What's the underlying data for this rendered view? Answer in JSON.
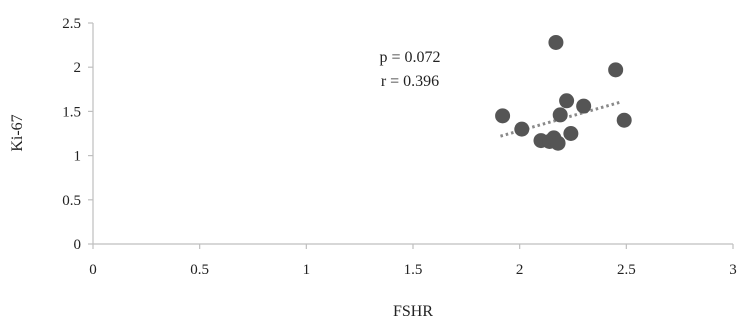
{
  "chart_data": {
    "type": "scatter",
    "xlabel": "FSHR",
    "ylabel": "Ki-67",
    "xlim": [
      0,
      3
    ],
    "ylim": [
      0,
      2.5
    ],
    "x_ticks": [
      "0",
      "0.5",
      "1",
      "1.5",
      "2",
      "2.5",
      "3"
    ],
    "y_ticks": [
      "0",
      "0.5",
      "1",
      "1.5",
      "2",
      "2.5"
    ],
    "grid": false,
    "points": [
      {
        "x": 1.92,
        "y": 1.45
      },
      {
        "x": 2.01,
        "y": 1.3
      },
      {
        "x": 2.1,
        "y": 1.17
      },
      {
        "x": 2.14,
        "y": 1.16
      },
      {
        "x": 2.16,
        "y": 1.2
      },
      {
        "x": 2.17,
        "y": 2.28
      },
      {
        "x": 2.18,
        "y": 1.14
      },
      {
        "x": 2.19,
        "y": 1.46
      },
      {
        "x": 2.22,
        "y": 1.62
      },
      {
        "x": 2.24,
        "y": 1.25
      },
      {
        "x": 2.3,
        "y": 1.56
      },
      {
        "x": 2.45,
        "y": 1.97
      },
      {
        "x": 2.49,
        "y": 1.4
      }
    ],
    "trendline": {
      "style": "dotted",
      "x": [
        1.91,
        2.48
      ],
      "y": [
        1.22,
        1.61
      ]
    },
    "annotations": [
      "p = 0.072",
      "r = 0.396"
    ],
    "colors": {
      "points": "#555555",
      "trendline": "#8a8a8a",
      "axes": "#bfbfbf"
    }
  }
}
